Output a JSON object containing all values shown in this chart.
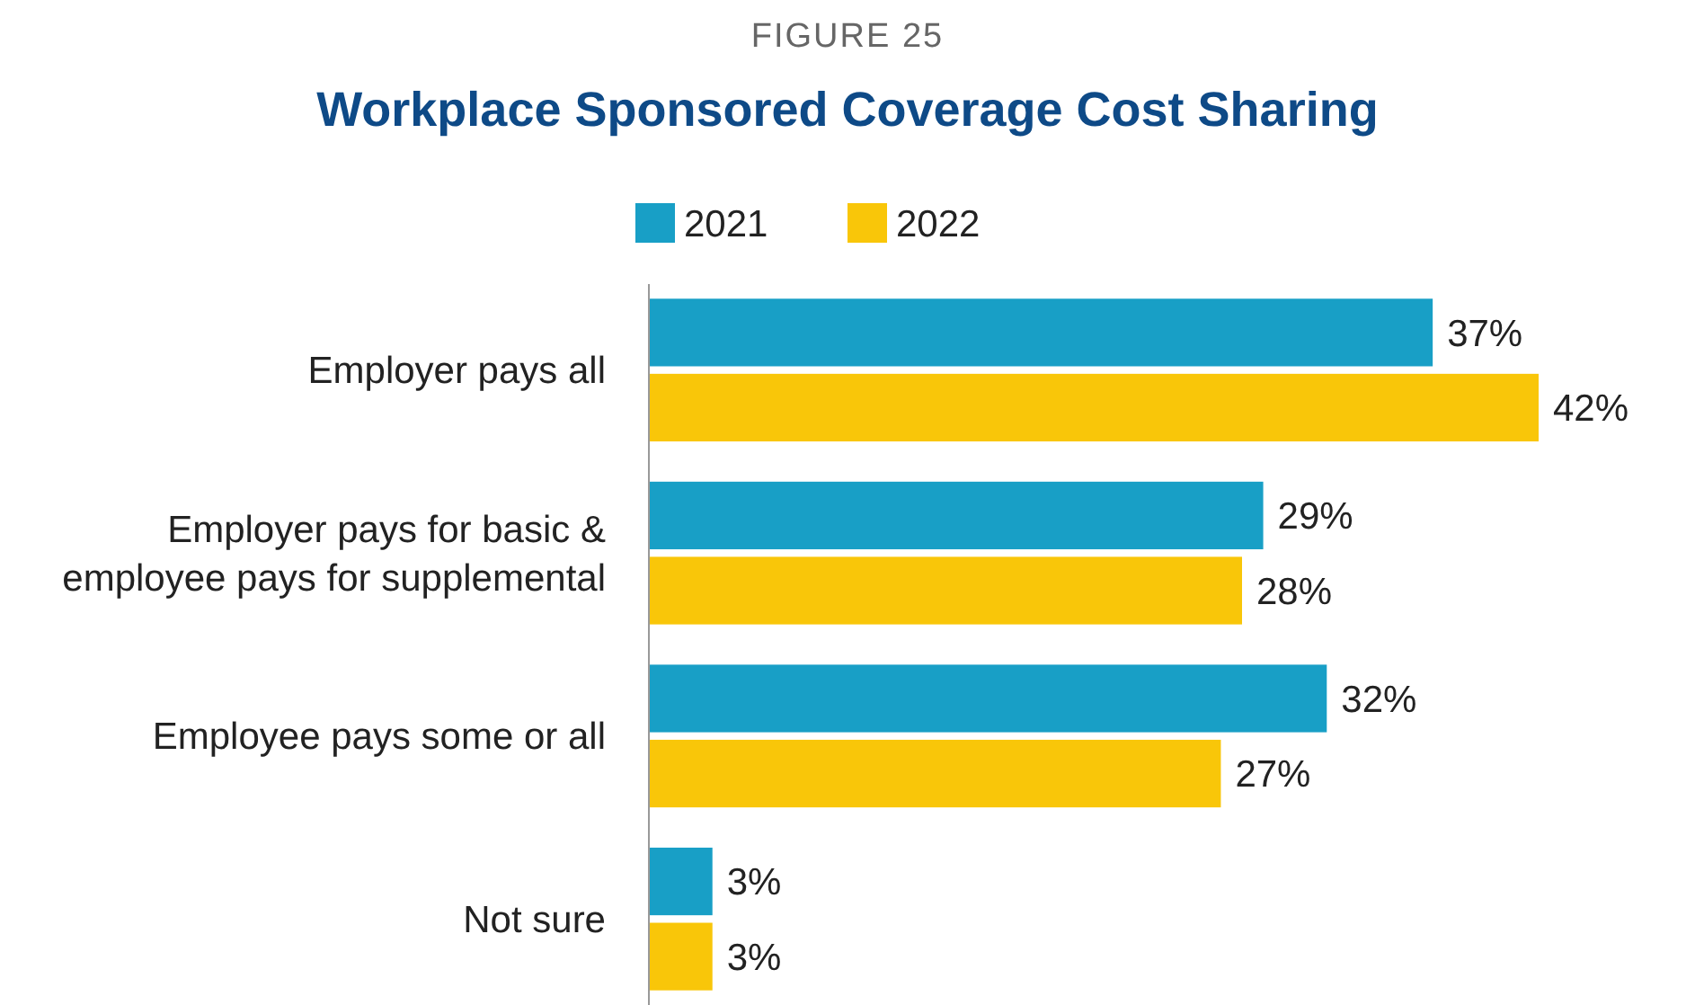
{
  "chart_data": {
    "type": "bar",
    "orientation": "horizontal",
    "title": "Workplace Sponsored Coverage Cost Sharing",
    "annotations": [
      "FIGURE 25"
    ],
    "categories": [
      "Employer pays all",
      "Employer pays for basic & employee pays for supplemental",
      "Employee pays some or all",
      "Not sure"
    ],
    "series": [
      {
        "name": "2021",
        "color": "#189fc6",
        "values": [
          37,
          29,
          32,
          3
        ],
        "value_labels": [
          "37%",
          "29%",
          "32%",
          "3%"
        ]
      },
      {
        "name": "2022",
        "color": "#f9c609",
        "values": [
          42,
          28,
          27,
          3
        ],
        "value_labels": [
          "42%",
          "28%",
          "27%",
          "3%"
        ]
      }
    ],
    "legend": "top",
    "tick_labels": "y"
  }
}
